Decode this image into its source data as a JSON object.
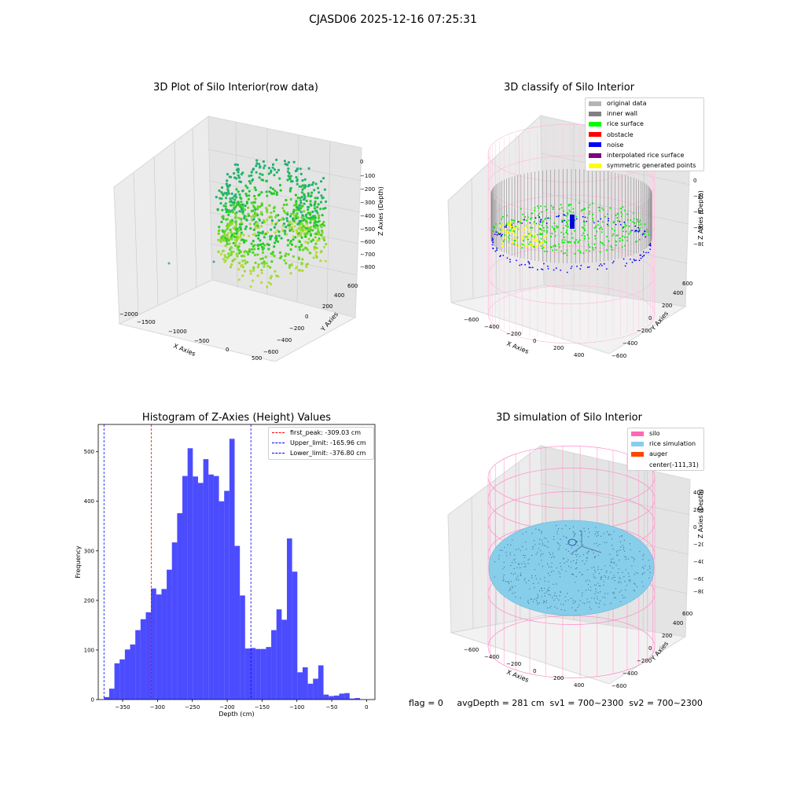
{
  "suptitle": "CJASD06 2025-12-16 07:25:31",
  "status_text": "flag = 0     avgDepth = 281 cm  sv1 = 700~2300  sv2 = 700~2300",
  "panels": {
    "raw": {
      "title": "3D Plot of Silo Interior(row data)",
      "xlabel": "X Axies",
      "ylabel": "Y Axies",
      "zlabel": "Z Axies (Depth)",
      "xticks": [
        "−2000",
        "−1500",
        "−1000",
        "−500",
        "0",
        "500"
      ],
      "yticks": [
        "−600",
        "−400",
        "−200",
        "0",
        "200",
        "400",
        "600"
      ],
      "zticks": [
        "0",
        "−100",
        "−200",
        "−300",
        "−400",
        "−500",
        "−600",
        "−700",
        "−800"
      ]
    },
    "classify": {
      "title": "3D classify of Silo Interior",
      "xlabel": "X Axies",
      "ylabel": "Y Axies",
      "zlabel": "Z Axies (Depth)",
      "xticks": [
        "−600",
        "−400",
        "−200",
        "0",
        "200",
        "400"
      ],
      "yticks": [
        "−600",
        "−400",
        "−200",
        "0",
        "200",
        "400",
        "600"
      ],
      "zticks": [
        "200",
        "0",
        "−200",
        "−400",
        "−600",
        "−800"
      ],
      "legend": [
        {
          "label": "original data",
          "color": "#b4b4b4"
        },
        {
          "label": "inner wall",
          "color": "#808080"
        },
        {
          "label": "rice surface",
          "color": "#00ff00"
        },
        {
          "label": "obstacle",
          "color": "#ff0000"
        },
        {
          "label": "noise",
          "color": "#0000ff"
        },
        {
          "label": "interpolated rice surface",
          "color": "#800080"
        },
        {
          "label": "symmetric generated points",
          "color": "#ffff00"
        }
      ]
    },
    "sim": {
      "title": "3D simulation of Silo Interior",
      "xlabel": "X Axies",
      "ylabel": "Y Axies",
      "zlabel": "Z Axies (Depth)",
      "xticks": [
        "−600",
        "−400",
        "−200",
        "0",
        "200",
        "400"
      ],
      "yticks": [
        "−600",
        "−400",
        "−200",
        "0",
        "200",
        "400",
        "600"
      ],
      "zticks": [
        "400",
        "200",
        "0",
        "−200",
        "−400",
        "−600",
        "−800"
      ],
      "legend": [
        {
          "label": "silo",
          "color": "#ff69b4"
        },
        {
          "label": "rice simulation",
          "color": "#87ceeb"
        },
        {
          "label": "auger",
          "color": "#ff4500"
        },
        {
          "label": "center(-111,31)",
          "color": ""
        }
      ]
    }
  },
  "chart_data": {
    "type": "bar",
    "title": "Histogram of Z-Axies (Height) Values",
    "xlabel": "Depth (cm)",
    "ylabel": "Frequency",
    "xlim": [
      -385,
      12
    ],
    "ylim": [
      0,
      555
    ],
    "xticks": [
      -350,
      -300,
      -250,
      -200,
      -150,
      -100,
      -50,
      0
    ],
    "yticks": [
      0,
      100,
      200,
      300,
      400,
      500
    ],
    "bar_color": "#0000ff",
    "bin_start": -376.8,
    "bin_width": 7.5,
    "values": [
      5,
      22,
      73,
      81,
      101,
      111,
      140,
      162,
      176,
      224,
      212,
      223,
      262,
      317,
      376,
      451,
      507,
      450,
      437,
      485,
      454,
      451,
      400,
      421,
      526,
      310,
      210,
      103,
      104,
      102,
      102,
      106,
      140,
      182,
      161,
      325,
      258,
      55,
      65,
      32,
      42,
      69,
      10,
      7,
      8,
      12,
      13,
      2,
      3
    ],
    "vlines": [
      {
        "label": "first_peak: -309.03 cm",
        "x": -309.03,
        "color": "#ff0000"
      },
      {
        "label": "Upper_limit: -165.96 cm",
        "x": -165.96,
        "color": "#0000ff"
      },
      {
        "label": "Lower_limit: -376.80 cm",
        "x": -376.8,
        "color": "#0000ff"
      }
    ],
    "legend_position": "upper right"
  }
}
